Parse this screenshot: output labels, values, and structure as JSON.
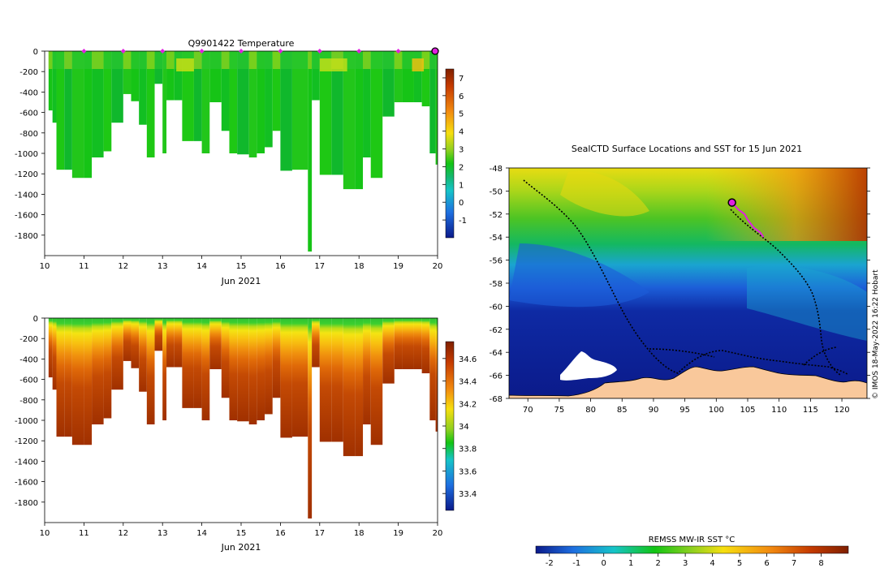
{
  "chart_data": [
    {
      "type": "heatmap",
      "title": "Q9901422  Temperature",
      "xlabel": "Jun 2021",
      "x_ticks": [
        10,
        11,
        12,
        13,
        14,
        15,
        16,
        17,
        18,
        19,
        20
      ],
      "xlim": [
        10,
        20
      ],
      "ylim": [
        -2000,
        0
      ],
      "y_ticks": [
        0,
        -200,
        -400,
        -600,
        -800,
        -1000,
        -1200,
        -1400,
        -1600,
        -1800
      ],
      "y_tick_labels": [
        "0",
        "-200",
        "-400",
        "-600",
        "-800",
        "-1000",
        "-1200",
        "-1400",
        "-1600",
        "-1800"
      ],
      "colorbar": {
        "range": [
          -2,
          7.5
        ],
        "ticks": [
          -1,
          0,
          1,
          2,
          3,
          4,
          5,
          6,
          7
        ],
        "tick_labels": [
          "-1",
          "0",
          "1",
          "2",
          "3",
          "4",
          "5",
          "6",
          "7"
        ]
      },
      "surface_markers": [
        11,
        12,
        13,
        14,
        15,
        16,
        17,
        18,
        19
      ],
      "current_marker": 20,
      "profiles": [
        {
          "day": 10.1,
          "depth": 580
        },
        {
          "day": 10.2,
          "depth": 700
        },
        {
          "day": 10.3,
          "depth": 1160
        },
        {
          "day": 10.5,
          "depth": 1160
        },
        {
          "day": 10.7,
          "depth": 1240
        },
        {
          "day": 11.0,
          "depth": 1240
        },
        {
          "day": 11.2,
          "depth": 1040
        },
        {
          "day": 11.5,
          "depth": 980
        },
        {
          "day": 11.7,
          "depth": 700
        },
        {
          "day": 12.0,
          "depth": 420
        },
        {
          "day": 12.2,
          "depth": 490
        },
        {
          "day": 12.4,
          "depth": 720
        },
        {
          "day": 12.6,
          "depth": 1040
        },
        {
          "day": 12.8,
          "depth": 320
        },
        {
          "day": 13.0,
          "depth": 1000
        },
        {
          "day": 13.1,
          "depth": 480
        },
        {
          "day": 13.3,
          "depth": 480
        },
        {
          "day": 13.5,
          "depth": 880
        },
        {
          "day": 13.8,
          "depth": 880
        },
        {
          "day": 14.0,
          "depth": 1000
        },
        {
          "day": 14.2,
          "depth": 500
        },
        {
          "day": 14.5,
          "depth": 780
        },
        {
          "day": 14.7,
          "depth": 1000
        },
        {
          "day": 14.9,
          "depth": 1010
        },
        {
          "day": 15.2,
          "depth": 1040
        },
        {
          "day": 15.4,
          "depth": 1000
        },
        {
          "day": 15.6,
          "depth": 940
        },
        {
          "day": 15.8,
          "depth": 780
        },
        {
          "day": 16.0,
          "depth": 1170
        },
        {
          "day": 16.3,
          "depth": 1160
        },
        {
          "day": 16.7,
          "depth": 1960
        },
        {
          "day": 16.8,
          "depth": 480
        },
        {
          "day": 17.0,
          "depth": 1210
        },
        {
          "day": 17.3,
          "depth": 1210
        },
        {
          "day": 17.6,
          "depth": 1350
        },
        {
          "day": 17.9,
          "depth": 1350
        },
        {
          "day": 18.1,
          "depth": 1040
        },
        {
          "day": 18.3,
          "depth": 1240
        },
        {
          "day": 18.6,
          "depth": 640
        },
        {
          "day": 18.9,
          "depth": 500
        },
        {
          "day": 19.1,
          "depth": 500
        },
        {
          "day": 19.4,
          "depth": 500
        },
        {
          "day": 19.6,
          "depth": 540
        },
        {
          "day": 19.8,
          "depth": 1000
        },
        {
          "day": 19.95,
          "depth": 1110
        }
      ]
    },
    {
      "type": "heatmap",
      "title": "",
      "xlabel": "Jun 2021",
      "x_ticks": [
        10,
        11,
        12,
        13,
        14,
        15,
        16,
        17,
        18,
        19,
        20
      ],
      "xlim": [
        10,
        20
      ],
      "ylim": [
        -2000,
        0
      ],
      "y_ticks": [
        0,
        -200,
        -400,
        -600,
        -800,
        -1000,
        -1200,
        -1400,
        -1600,
        -1800
      ],
      "y_tick_labels": [
        "0",
        "-200",
        "-400",
        "-600",
        "-800",
        "-1000",
        "-1200",
        "-1400",
        "-1600",
        "-1800"
      ],
      "colorbar": {
        "range": [
          33.25,
          34.75
        ],
        "ticks": [
          33.4,
          33.6,
          33.8,
          34,
          34.2,
          34.4,
          34.6
        ],
        "tick_labels": [
          "33.4",
          "33.6",
          "33.8",
          "34",
          "34.2",
          "34.4",
          "34.6"
        ]
      }
    },
    {
      "type": "heatmap",
      "title": "SealCTD Surface Locations and SST for 15 Jun 2021",
      "x_ticks": [
        70,
        75,
        80,
        85,
        90,
        95,
        100,
        105,
        110,
        115,
        120
      ],
      "y_ticks": [
        -48,
        -50,
        -52,
        -54,
        -56,
        -58,
        -60,
        -62,
        -64,
        -66,
        -68
      ],
      "xlim": [
        67,
        124
      ],
      "ylim": [
        -68,
        -48
      ],
      "track_recent": [
        [
          102.5,
          -51
        ],
        [
          103.5,
          -51.6
        ],
        [
          104.5,
          -52
        ],
        [
          105,
          -52.5
        ],
        [
          106,
          -53.2
        ],
        [
          107,
          -53.6
        ],
        [
          107.5,
          -54
        ]
      ],
      "current_position": [
        102.5,
        -51
      ],
      "colorbar": {
        "label": "REMSS MW-IR SST °C",
        "range": [
          -2.5,
          9
        ],
        "ticks": [
          -2,
          -1,
          0,
          1,
          2,
          3,
          4,
          5,
          6,
          7,
          8
        ],
        "tick_labels": [
          "-2",
          "-1",
          "0",
          "1",
          "2",
          "3",
          "4",
          "5",
          "6",
          "7",
          "8"
        ]
      }
    }
  ],
  "credit": "© IMOS 18-May-2022 16:22 Hobart",
  "colors": {
    "land": "#f9c89b",
    "marker": "#e020e0",
    "ice": "#ffffff"
  }
}
